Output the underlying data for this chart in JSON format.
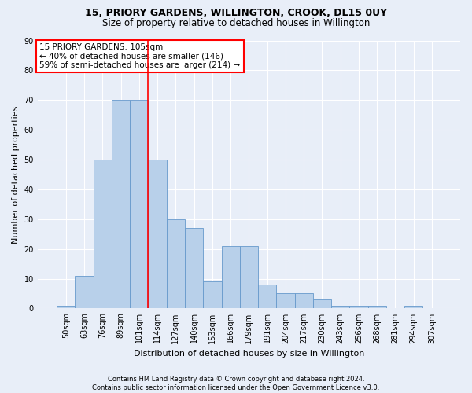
{
  "title1": "15, PRIORY GARDENS, WILLINGTON, CROOK, DL15 0UY",
  "title2": "Size of property relative to detached houses in Willington",
  "xlabel": "Distribution of detached houses by size in Willington",
  "ylabel": "Number of detached properties",
  "bin_labels": [
    "50sqm",
    "63sqm",
    "76sqm",
    "89sqm",
    "101sqm",
    "114sqm",
    "127sqm",
    "140sqm",
    "153sqm",
    "166sqm",
    "179sqm",
    "191sqm",
    "204sqm",
    "217sqm",
    "230sqm",
    "243sqm",
    "256sqm",
    "268sqm",
    "281sqm",
    "294sqm",
    "307sqm"
  ],
  "bar_values": [
    1,
    11,
    50,
    70,
    70,
    50,
    30,
    27,
    9,
    21,
    21,
    8,
    5,
    5,
    3,
    1,
    1,
    1,
    0,
    1,
    0
  ],
  "bar_color": "#b8d0ea",
  "bar_edge_color": "#6699cc",
  "vline_color": "red",
  "vline_pos": 4.5,
  "annotation_text": "15 PRIORY GARDENS: 105sqm\n← 40% of detached houses are smaller (146)\n59% of semi-detached houses are larger (214) →",
  "annotation_box_color": "white",
  "annotation_box_edge_color": "red",
  "ylim": [
    0,
    90
  ],
  "yticks": [
    0,
    10,
    20,
    30,
    40,
    50,
    60,
    70,
    80,
    90
  ],
  "footnote": "Contains HM Land Registry data © Crown copyright and database right 2024.\nContains public sector information licensed under the Open Government Licence v3.0.",
  "bg_color": "#e8eef8",
  "grid_color": "white",
  "title1_fontsize": 9,
  "title2_fontsize": 8.5,
  "ylabel_fontsize": 8,
  "xlabel_fontsize": 8,
  "tick_fontsize": 7,
  "annot_fontsize": 7.5,
  "footnote_fontsize": 6
}
